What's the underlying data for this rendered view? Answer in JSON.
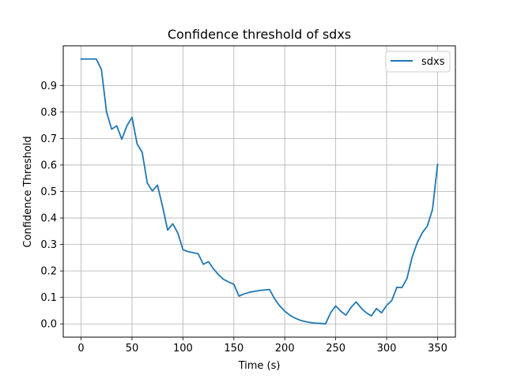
{
  "chart_data": {
    "type": "line",
    "title": "Confidence threshold of sdxs",
    "xlabel": "Time (s)",
    "ylabel": "Confidence Threshold",
    "xlim": [
      -17.5,
      367.5
    ],
    "ylim": [
      -0.05,
      1.05
    ],
    "xticks": [
      0,
      50,
      100,
      150,
      200,
      250,
      300,
      350
    ],
    "yticks": [
      0.0,
      0.1,
      0.2,
      0.3,
      0.4,
      0.5,
      0.6,
      0.7,
      0.8,
      0.9
    ],
    "ytick_labels": [
      "0.0",
      "0.1",
      "0.2",
      "0.3",
      "0.4",
      "0.5",
      "0.6",
      "0.7",
      "0.8",
      "0.9"
    ],
    "grid": true,
    "legend_position": "top-right",
    "series": [
      {
        "name": "sdxs",
        "color": "#1f77b4",
        "x": [
          0,
          5,
          10,
          15,
          20,
          25,
          30,
          35,
          40,
          45,
          50,
          55,
          60,
          65,
          70,
          75,
          80,
          85,
          90,
          95,
          100,
          105,
          110,
          115,
          120,
          125,
          130,
          135,
          140,
          145,
          150,
          155,
          160,
          165,
          170,
          175,
          180,
          185,
          190,
          195,
          200,
          205,
          210,
          215,
          220,
          225,
          230,
          235,
          240,
          245,
          250,
          255,
          260,
          265,
          270,
          275,
          280,
          285,
          290,
          295,
          300,
          305,
          310,
          315,
          320,
          325,
          330,
          335,
          340,
          345,
          350
        ],
        "y": [
          1.0,
          1.0,
          1.0,
          1.0,
          0.96,
          0.8,
          0.735,
          0.748,
          0.697,
          0.748,
          0.78,
          0.68,
          0.648,
          0.532,
          0.502,
          0.524,
          0.443,
          0.354,
          0.378,
          0.343,
          0.28,
          0.273,
          0.269,
          0.265,
          0.225,
          0.235,
          0.208,
          0.185,
          0.168,
          0.158,
          0.15,
          0.105,
          0.113,
          0.119,
          0.123,
          0.126,
          0.128,
          0.13,
          0.095,
          0.068,
          0.048,
          0.033,
          0.022,
          0.014,
          0.009,
          0.005,
          0.003,
          0.002,
          0.0,
          0.042,
          0.068,
          0.048,
          0.033,
          0.062,
          0.083,
          0.06,
          0.042,
          0.03,
          0.058,
          0.042,
          0.07,
          0.088,
          0.138,
          0.137,
          0.172,
          0.252,
          0.306,
          0.344,
          0.37,
          0.432,
          0.602
        ]
      }
    ]
  }
}
